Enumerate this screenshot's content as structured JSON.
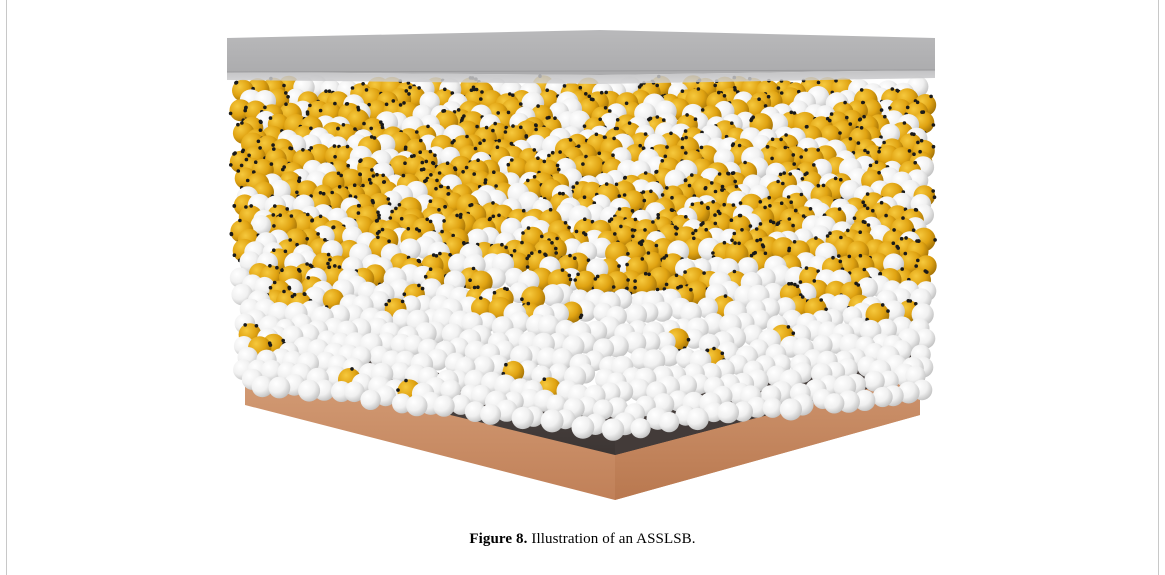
{
  "figure": {
    "label": "Figure 8.",
    "caption_text": "Illustration of an ASSLSB.",
    "layers": {
      "top_plate_color": "#a9a9ab",
      "carbon_layer_color": "#4a4240",
      "copper_foil_color": "#c99367",
      "sulfur_particle_color": "#e2a614",
      "electrolyte_particle_color": "#f2f2f2",
      "carbon_dot_color": "#1a1a1a"
    }
  }
}
